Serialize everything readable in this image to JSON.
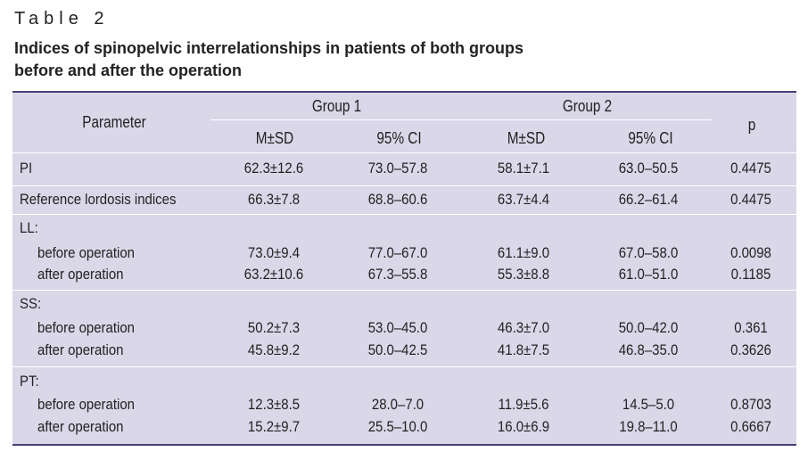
{
  "caption": "Table 2",
  "title_line1": "Indices of spinopelvic interrelationships in patients of both groups",
  "title_line2": "before and after the operation",
  "header": {
    "parameter": "Parameter",
    "group1": "Group 1",
    "group2": "Group 2",
    "p": "p",
    "msd": "M±SD",
    "ci": "95% CI"
  },
  "rows": [
    {
      "label": "PI",
      "g1_msd": "62.3±12.6",
      "g1_ci": "73.0–57.8",
      "g2_msd": "58.1±7.1",
      "g2_ci": "63.0–50.5",
      "p": "0.4475"
    },
    {
      "label": "Reference lordosis indices",
      "g1_msd": "66.3±7.8",
      "g1_ci": "68.8–60.6",
      "g2_msd": "63.7±4.4",
      "g2_ci": "66.2–61.4",
      "p": "0.4475"
    },
    {
      "label": "LL:"
    },
    {
      "label": "before operation",
      "g1_msd": "73.0±9.4",
      "g1_ci": "77.0–67.0",
      "g2_msd": "61.1±9.0",
      "g2_ci": "67.0–58.0",
      "p": "0.0098"
    },
    {
      "label": "after operation",
      "g1_msd": "63.2±10.6",
      "g1_ci": "67.3–55.8",
      "g2_msd": "55.3±8.8",
      "g2_ci": "61.0–51.0",
      "p": "0.1185"
    },
    {
      "label": "SS:"
    },
    {
      "label": "before operation",
      "g1_msd": "50.2±7.3",
      "g1_ci": "53.0–45.0",
      "g2_msd": "46.3±7.0",
      "g2_ci": "50.0–42.0",
      "p": "0.361"
    },
    {
      "label": "after operation",
      "g1_msd": "45.8±9.2",
      "g1_ci": "50.0–42.5",
      "g2_msd": "41.8±7.5",
      "g2_ci": "46.8–35.0",
      "p": "0.3626"
    },
    {
      "label": "PT:"
    },
    {
      "label": "before operation",
      "g1_msd": "12.3±8.5",
      "g1_ci": "28.0–7.0",
      "g2_msd": "11.9±5.6",
      "g2_ci": "14.5–5.0",
      "p": "0.8703"
    },
    {
      "label": "after operation",
      "g1_msd": "15.2±9.7",
      "g1_ci": "25.5–10.0",
      "g2_msd": "16.0±6.9",
      "g2_ci": "19.8–11.0",
      "p": "0.6667"
    }
  ]
}
